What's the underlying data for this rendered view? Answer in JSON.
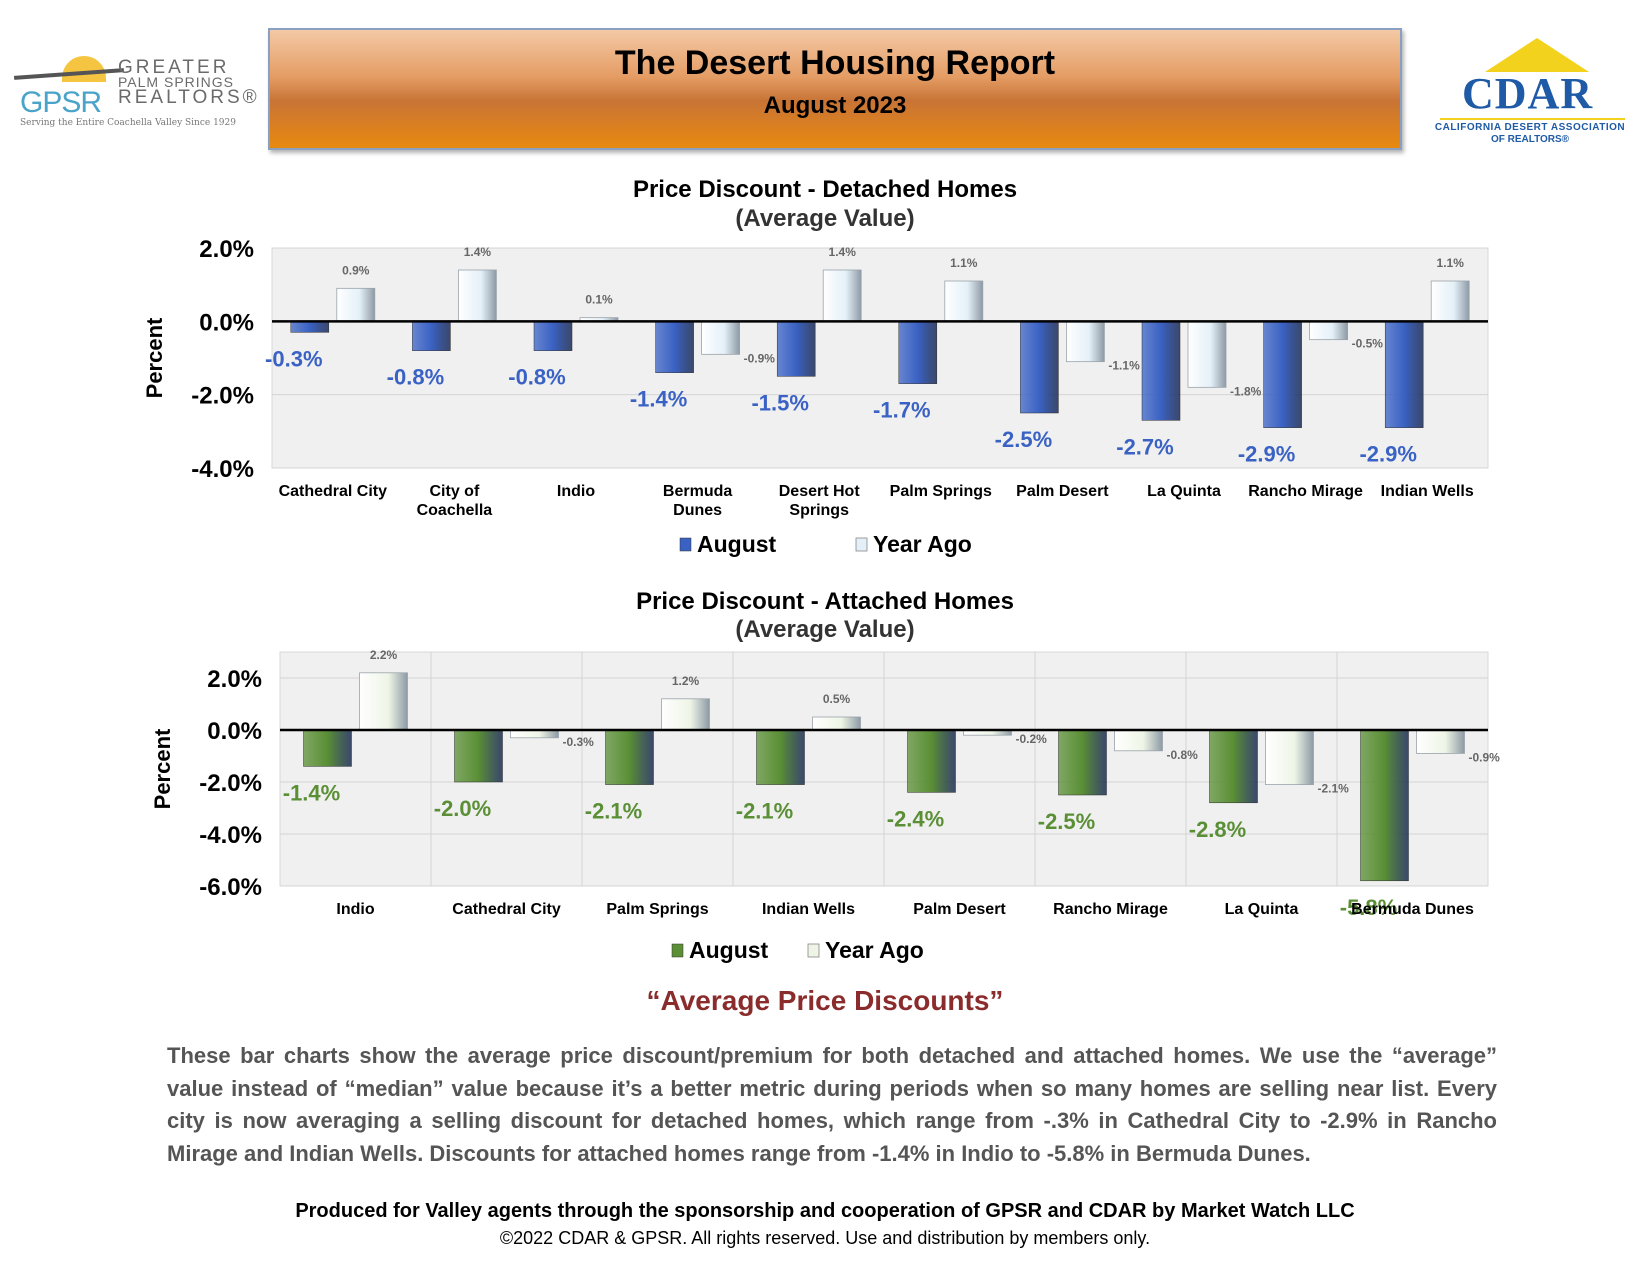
{
  "header": {
    "title": "The Desert Housing Report",
    "subtitle": "August 2023",
    "gpsr_logo": {
      "acronym": "GPSR",
      "line1": "GREATER",
      "line2": "PALM SPRINGS",
      "line3": "REALTORS®",
      "tagline": "Serving the Entire Coachella Valley Since 1929"
    },
    "cdar_logo": {
      "wordmark": "CDAR",
      "caption1": "CALIFORNIA DESERT ASSOCIATION",
      "caption2": "OF REALTORS®"
    }
  },
  "colors": {
    "august_detached": "#3a62c4",
    "august_attached": "#5a8f35",
    "year_ago_detached": "#e4f0f8",
    "year_ago_attached": "#eef5e6",
    "plot_bg": "#f0f0f0",
    "headline": "#8b2c2c"
  },
  "chart_data": [
    {
      "type": "bar",
      "title": "Price Discount - Detached Homes",
      "subtitle": "(Average Value)",
      "ylabel": "Percent",
      "xlabel": "",
      "ylim": [
        -4.0,
        2.0
      ],
      "yticks": [
        2.0,
        0.0,
        -2.0,
        -4.0
      ],
      "ytick_labels": [
        "2.0%",
        "0.0%",
        "-2.0%",
        "-4.0%"
      ],
      "categories": [
        "Cathedral City",
        "City of Coachella",
        "Indio",
        "Bermuda Dunes",
        "Desert Hot Springs",
        "Palm Springs",
        "Palm Desert",
        "La Quinta",
        "Rancho Mirage",
        "Indian Wells"
      ],
      "category_lines": [
        [
          "Cathedral City"
        ],
        [
          "City of",
          "Coachella"
        ],
        [
          "Indio"
        ],
        [
          "Bermuda",
          "Dunes"
        ],
        [
          "Desert Hot",
          "Springs"
        ],
        [
          "Palm Springs"
        ],
        [
          "Palm Desert"
        ],
        [
          "La Quinta"
        ],
        [
          "Rancho Mirage"
        ],
        [
          "Indian Wells"
        ]
      ],
      "series": [
        {
          "name": "August",
          "values": [
            -0.3,
            -0.8,
            -0.8,
            -1.4,
            -1.5,
            -1.7,
            -2.5,
            -2.7,
            -2.9,
            -2.9
          ],
          "labels": [
            "-0.3%",
            "-0.8%",
            "-0.8%",
            "-1.4%",
            "-1.5%",
            "-1.7%",
            "-2.5%",
            "-2.7%",
            "-2.9%",
            "-2.9%"
          ]
        },
        {
          "name": "Year Ago",
          "values": [
            0.9,
            1.4,
            0.1,
            -0.9,
            1.4,
            1.1,
            -1.1,
            -1.8,
            -0.5,
            1.1
          ],
          "labels": [
            "0.9%",
            "1.4%",
            "0.1%",
            "-0.9%",
            "1.4%",
            "1.1%",
            "-1.1%",
            "-1.8%",
            "-0.5%",
            "1.1%"
          ]
        }
      ],
      "legend": "bottom-center",
      "grid": true
    },
    {
      "type": "bar",
      "title": "Price Discount - Attached Homes",
      "subtitle": "(Average Value)",
      "ylabel": "Percent",
      "xlabel": "",
      "ylim": [
        -6.0,
        3.0
      ],
      "yticks": [
        2.0,
        0.0,
        -2.0,
        -4.0,
        -6.0
      ],
      "ytick_labels": [
        "2.0%",
        "0.0%",
        "-2.0%",
        "-4.0%",
        "-6.0%"
      ],
      "categories": [
        "Indio",
        "Cathedral City",
        "Palm Springs",
        "Indian Wells",
        "Palm Desert",
        "Rancho Mirage",
        "La Quinta",
        "Bermuda Dunes"
      ],
      "category_lines": [
        [
          "Indio"
        ],
        [
          "Cathedral City"
        ],
        [
          "Palm Springs"
        ],
        [
          "Indian Wells"
        ],
        [
          "Palm Desert"
        ],
        [
          "Rancho Mirage"
        ],
        [
          "La Quinta"
        ],
        [
          "Bermuda Dunes"
        ]
      ],
      "series": [
        {
          "name": "August",
          "values": [
            -1.4,
            -2.0,
            -2.1,
            -2.1,
            -2.4,
            -2.5,
            -2.8,
            -5.8
          ],
          "labels": [
            "-1.4%",
            "-2.0%",
            "-2.1%",
            "-2.1%",
            "-2.4%",
            "-2.5%",
            "-2.8%",
            "-5.8%"
          ]
        },
        {
          "name": "Year Ago",
          "values": [
            2.2,
            -0.3,
            1.2,
            0.5,
            -0.2,
            -0.8,
            -2.1,
            -0.9
          ],
          "labels": [
            "2.2%",
            "-0.3%",
            "1.2%",
            "0.5%",
            "-0.2%",
            "-0.8%",
            "-2.1%",
            "-0.9%"
          ]
        }
      ],
      "legend": "bottom-center",
      "grid": true
    }
  ],
  "commentary": {
    "headline": "“Average Price Discounts”",
    "body": "These bar charts show the average price discount/premium for both detached and attached homes. We use the “average” value instead of “median” value because it’s a better metric during periods when so many homes are selling near list. Every city is now averaging a selling discount for detached homes, which range from -.3% in Cathedral City to -2.9% in Rancho Mirage and Indian Wells. Discounts for attached homes range from -1.4% in Indio to -5.8% in Bermuda Dunes."
  },
  "footer": {
    "produced": "Produced for Valley agents through the sponsorship and cooperation of GPSR and CDAR by Market Watch LLC",
    "copyright": "©2022 CDAR & GPSR.  All rights reserved.  Use and distribution by members only."
  }
}
